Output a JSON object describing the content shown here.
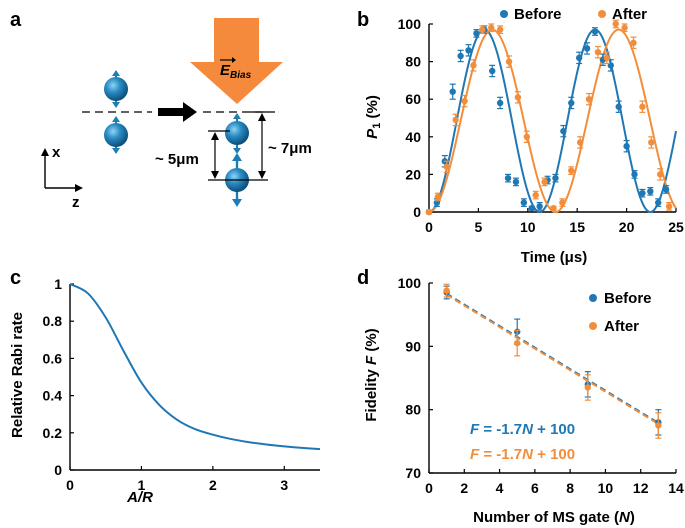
{
  "panel_labels": {
    "a": "a",
    "b": "b",
    "c": "c",
    "d": "d"
  },
  "colors": {
    "before": "#1f77b4",
    "after": "#f28e3b",
    "arrow": "#f58a3c",
    "ion": "#1b7fb5",
    "axis": "#000000"
  },
  "panel_a": {
    "field_label": "E",
    "field_sub": "Bias",
    "dist_small": "~ 5μm",
    "dist_large": "~ 7μm",
    "axis_x": "x",
    "axis_z": "z"
  },
  "chart_data": [
    {
      "panel": "b",
      "type": "line",
      "xlabel": "Time (μs)",
      "ylabel_main": "P",
      "ylabel_sub": "1",
      "ylabel_unit": " (%)",
      "xlim": [
        0,
        25
      ],
      "ylim": [
        0,
        100
      ],
      "xticks": [
        0,
        5,
        10,
        15,
        20,
        25
      ],
      "yticks": [
        0,
        20,
        40,
        60,
        80,
        100
      ],
      "legend": [
        "Before",
        "After"
      ],
      "series": [
        {
          "name": "Before",
          "period": 11.2,
          "x": [
            0,
            0.8,
            1.6,
            2.4,
            3.2,
            4,
            4.8,
            5.6,
            6.4,
            7.2,
            8,
            8.8,
            9.6,
            10.4,
            11.2,
            12,
            12.8,
            13.6,
            14.4,
            15.2,
            16,
            16.8,
            17.6,
            18.4,
            19.2,
            20,
            20.8,
            21.6,
            22.4,
            23.2,
            24
          ],
          "y": [
            0,
            5,
            27,
            64,
            83,
            86,
            95,
            97,
            75,
            58,
            18,
            16,
            5,
            2,
            3,
            17,
            18,
            43,
            58,
            82,
            87,
            96,
            81,
            78,
            56,
            35,
            20,
            10,
            11,
            5,
            12
          ],
          "err": [
            1,
            2,
            3,
            4,
            3,
            3,
            2,
            2,
            3,
            3,
            2,
            2,
            2,
            1,
            2,
            2,
            2,
            3,
            3,
            3,
            3,
            2,
            3,
            3,
            3,
            3,
            2,
            2,
            2,
            2,
            2
          ]
        },
        {
          "name": "After",
          "period": 12.8,
          "x": [
            0,
            0.9,
            1.8,
            2.7,
            3.6,
            4.5,
            5.4,
            6.3,
            7.2,
            8.1,
            9,
            9.9,
            10.8,
            11.7,
            12.6,
            13.5,
            14.4,
            15.3,
            16.2,
            17.1,
            18,
            18.9,
            19.8,
            20.7,
            21.6,
            22.5,
            23.4,
            24.3
          ],
          "y": [
            0,
            8,
            24,
            49,
            59,
            78,
            97,
            98,
            97,
            80,
            61,
            40,
            9,
            16,
            2,
            5,
            22,
            37,
            60,
            85,
            82,
            100,
            98,
            90,
            56,
            37,
            20,
            3
          ],
          "err": [
            1,
            2,
            3,
            3,
            3,
            3,
            2,
            2,
            2,
            3,
            3,
            3,
            2,
            2,
            1,
            2,
            2,
            3,
            3,
            3,
            3,
            2,
            2,
            3,
            3,
            3,
            3,
            2
          ]
        }
      ]
    },
    {
      "panel": "c",
      "type": "line",
      "xlabel": "A/R",
      "ylabel": "Relative Rabi rate",
      "xlim": [
        0,
        3.5
      ],
      "ylim": [
        0,
        1
      ],
      "xticks": [
        0,
        1,
        2,
        3
      ],
      "yticks": [
        0,
        0.2,
        0.4,
        0.6,
        0.8,
        1
      ],
      "ytick_labels": [
        "0",
        "0.2",
        "0.4",
        "0.6",
        "0.8",
        "1"
      ],
      "series": [
        {
          "name": "Rabi",
          "x": [
            0,
            0.25,
            0.5,
            0.75,
            1,
            1.25,
            1.5,
            1.75,
            2,
            2.25,
            2.5,
            2.75,
            3,
            3.25,
            3.5
          ],
          "y": [
            1.0,
            0.95,
            0.82,
            0.64,
            0.47,
            0.35,
            0.27,
            0.22,
            0.19,
            0.167,
            0.15,
            0.137,
            0.127,
            0.119,
            0.112
          ]
        }
      ]
    },
    {
      "panel": "d",
      "type": "scatter",
      "xlabel_main": "Number of MS gate (",
      "xlabel_var": "N",
      "xlabel_end": ")",
      "ylabel_main": "Fidelity ",
      "ylabel_var": "F",
      "ylabel_unit": " (%)",
      "xlim": [
        0,
        14
      ],
      "ylim": [
        70,
        100
      ],
      "xticks": [
        0,
        2,
        4,
        6,
        8,
        10,
        12,
        14
      ],
      "yticks": [
        70,
        80,
        90,
        100
      ],
      "legend": [
        "Before",
        "After"
      ],
      "series": [
        {
          "name": "Before",
          "x": [
            1,
            5,
            9,
            13
          ],
          "y": [
            98.5,
            92.3,
            84,
            78
          ],
          "err": [
            1.0,
            2.0,
            2.0,
            2.0
          ]
        },
        {
          "name": "After",
          "x": [
            1,
            5,
            9,
            13
          ],
          "y": [
            98.8,
            90.5,
            83.5,
            77.5
          ],
          "err": [
            1.0,
            2.0,
            2.0,
            2.0
          ]
        }
      ],
      "fits": [
        {
          "name": "Before",
          "eq_var1": "F",
          "eq_mid": " = -1.7",
          "eq_var2": "N",
          "eq_end": " + 100",
          "slope": -1.7,
          "intercept": 100
        },
        {
          "name": "After",
          "eq_var1": "F",
          "eq_mid": " = -1.7",
          "eq_var2": "N",
          "eq_end": " + 100",
          "slope": -1.7,
          "intercept": 100
        }
      ]
    }
  ]
}
